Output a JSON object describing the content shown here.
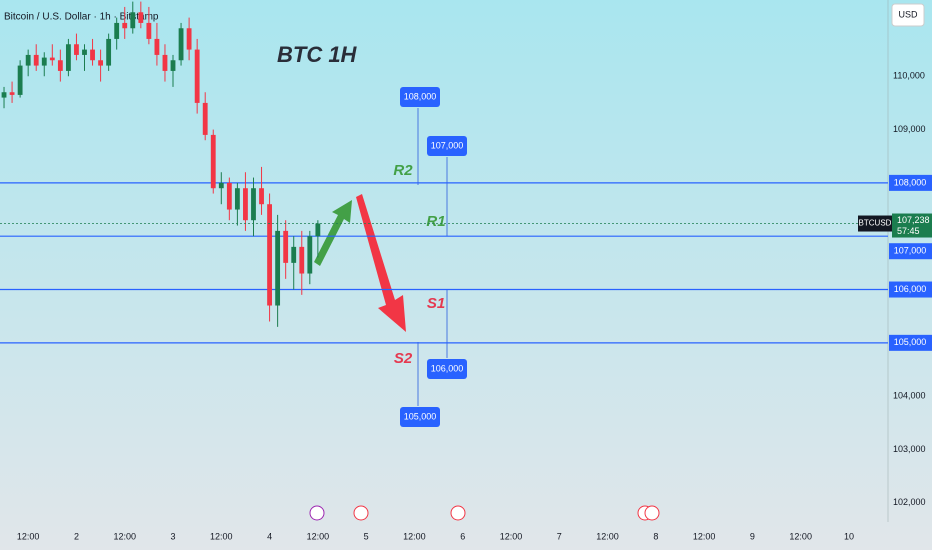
{
  "chart_data": {
    "type": "candlestick",
    "title": "Bitcoin / U.S. Dollar · 1h · Bitstamp",
    "subtitle": "BTC 1H",
    "currency": "USD",
    "up_color": "#1b7d4f",
    "down_color": "#f23645",
    "x": [
      6,
      8,
      10,
      12,
      14,
      16,
      18,
      20,
      22,
      24,
      26,
      28,
      30,
      32,
      34,
      36,
      38,
      40,
      42,
      44,
      46,
      48,
      50,
      52,
      54,
      56,
      58,
      60,
      62,
      64,
      66,
      68,
      70,
      72,
      74,
      76,
      78,
      80,
      82,
      84
    ],
    "open": [
      109600,
      109700,
      109650,
      110200,
      110400,
      110200,
      110350,
      110300,
      110100,
      110600,
      110400,
      110500,
      110300,
      110200,
      110700,
      111000,
      110900,
      111200,
      111000,
      110700,
      110400,
      110100,
      110300,
      110900,
      110500,
      109500,
      108900,
      107900,
      108000,
      107500,
      107900,
      107300,
      107900,
      107600,
      105700,
      107100,
      106500,
      106800,
      106300,
      107000
    ],
    "high": [
      109800,
      109900,
      110300,
      110500,
      110600,
      110450,
      110600,
      110500,
      110700,
      110800,
      110600,
      110700,
      110500,
      110800,
      111100,
      111300,
      111400,
      111400,
      111300,
      111000,
      110600,
      110400,
      111000,
      111100,
      110700,
      109700,
      109000,
      108200,
      108100,
      108000,
      108200,
      108100,
      108300,
      107800,
      107400,
      107300,
      107000,
      107100,
      107100,
      107300
    ],
    "low": [
      109400,
      109500,
      109600,
      110000,
      110100,
      110000,
      110200,
      109900,
      110000,
      110300,
      110100,
      110200,
      109900,
      110100,
      110500,
      110700,
      110800,
      110900,
      110600,
      110200,
      109900,
      109800,
      110200,
      110300,
      109300,
      108800,
      107800,
      107600,
      107300,
      107200,
      107100,
      107000,
      107400,
      105400,
      105300,
      106200,
      106000,
      105900,
      106100,
      106600
    ],
    "close": [
      109700,
      109650,
      110200,
      110400,
      110200,
      110350,
      110300,
      110100,
      110600,
      110400,
      110500,
      110300,
      110200,
      110700,
      111000,
      110900,
      111200,
      111000,
      110700,
      110400,
      110100,
      110300,
      110900,
      110500,
      109500,
      108900,
      107900,
      108000,
      107500,
      107900,
      107300,
      107900,
      107600,
      105700,
      107100,
      106500,
      106800,
      106300,
      107000,
      107238
    ],
    "xlim": [
      5,
      225.7
    ],
    "ylim": [
      101640,
      111430
    ],
    "xticks": [
      {
        "value": 12,
        "label": "12:00"
      },
      {
        "value": 24,
        "label": "2"
      },
      {
        "value": 36,
        "label": "12:00"
      },
      {
        "value": 48,
        "label": "3"
      },
      {
        "value": 60,
        "label": "12:00"
      },
      {
        "value": 72,
        "label": "4"
      },
      {
        "value": 84,
        "label": "12:00"
      },
      {
        "value": 96,
        "label": "5"
      },
      {
        "value": 108,
        "label": "12:00"
      },
      {
        "value": 120,
        "label": "6"
      },
      {
        "value": 132,
        "label": "12:00"
      },
      {
        "value": 144,
        "label": "7"
      },
      {
        "value": 156,
        "label": "12:00"
      },
      {
        "value": 168,
        "label": "8"
      },
      {
        "value": 180,
        "label": "12:00"
      },
      {
        "value": 192,
        "label": "9"
      },
      {
        "value": 204,
        "label": "12:00"
      },
      {
        "value": 216,
        "label": "10"
      }
    ],
    "yticks": [
      {
        "value": 102000,
        "label": "102,000"
      },
      {
        "value": 103000,
        "label": "103,000"
      },
      {
        "value": 104000,
        "label": "104,000"
      },
      {
        "value": 109000,
        "label": "109,000"
      },
      {
        "value": 110000,
        "label": "110,000"
      }
    ],
    "levels": [
      {
        "name": "R2",
        "value": 108000,
        "value_label": "108,000",
        "color": "#43a047"
      },
      {
        "name": "R1",
        "value": 107000,
        "value_label": "107,000",
        "color": "#43a047"
      },
      {
        "name": "S1",
        "value": 106000,
        "value_label": "106,000",
        "color": "#e53950"
      },
      {
        "name": "S2",
        "value": 105000,
        "value_label": "105,000",
        "color": "#e53950"
      }
    ],
    "targets": [
      "108,000",
      "107,000",
      "106,000",
      "105,000"
    ],
    "last_price": {
      "name": "BTCUSD",
      "value": 107238,
      "value_label": "107,238",
      "countdown": "57:45"
    }
  }
}
